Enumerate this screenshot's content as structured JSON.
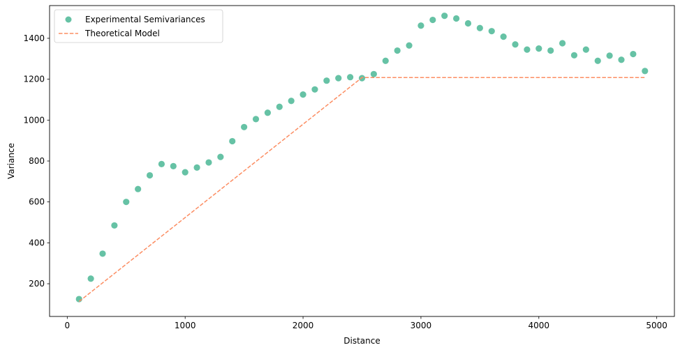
{
  "chart_data": {
    "type": "scatter",
    "xlabel": "Distance",
    "ylabel": "Variance",
    "xlim": [
      -150,
      5150
    ],
    "ylim": [
      40,
      1560
    ],
    "xticks": [
      0,
      1000,
      2000,
      3000,
      4000,
      5000
    ],
    "yticks": [
      200,
      400,
      600,
      800,
      1000,
      1200,
      1400
    ],
    "grid": false,
    "legend_position": "top-left",
    "series": [
      {
        "name": "Experimental Semivariances",
        "kind": "scatter",
        "color": "#66c2a5",
        "x": [
          100,
          200,
          300,
          400,
          500,
          600,
          700,
          800,
          900,
          1000,
          1100,
          1200,
          1300,
          1400,
          1500,
          1600,
          1700,
          1800,
          1900,
          2000,
          2100,
          2200,
          2300,
          2400,
          2500,
          2600,
          2700,
          2800,
          2900,
          3000,
          3100,
          3200,
          3300,
          3400,
          3500,
          3600,
          3700,
          3800,
          3900,
          4000,
          4100,
          4200,
          4300,
          4400,
          4500,
          4600,
          4700,
          4800,
          4900
        ],
        "y": [
          125,
          225,
          347,
          485,
          600,
          663,
          730,
          785,
          775,
          745,
          768,
          793,
          820,
          897,
          966,
          1005,
          1036,
          1065,
          1094,
          1125,
          1150,
          1193,
          1205,
          1210,
          1205,
          1225,
          1290,
          1340,
          1365,
          1462,
          1490,
          1510,
          1497,
          1473,
          1450,
          1435,
          1408,
          1370,
          1345,
          1350,
          1340,
          1376,
          1317,
          1345,
          1290,
          1315,
          1295,
          1323,
          1240
        ]
      },
      {
        "name": "Theoretical Model",
        "kind": "line",
        "style": "dashed",
        "color": "#fc8d62",
        "x": [
          100,
          2500,
          4900
        ],
        "y": [
          113,
          1208,
          1208
        ]
      }
    ]
  }
}
